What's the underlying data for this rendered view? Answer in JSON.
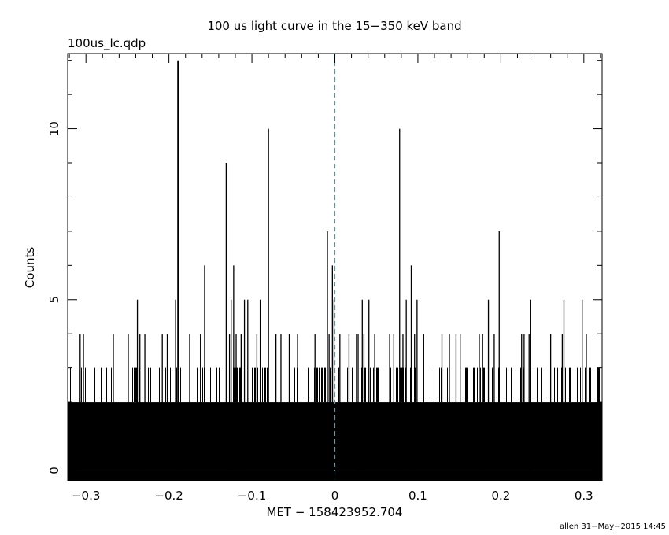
{
  "chart_data": {
    "type": "bar",
    "title": "100 us light curve in the 15−350 keV band",
    "subtitle": "100us_lc.qdp",
    "xlabel": "MET − 158423952.704",
    "ylabel": "Counts",
    "footer": "allen 31−May−2015 14:45",
    "xlim": [
      -0.322,
      0.322
    ],
    "ylim": [
      -0.3,
      12.2
    ],
    "bin_width": 0.0001,
    "x_ticks": [
      -0.3,
      -0.2,
      -0.1,
      0,
      0.1,
      0.2,
      0.3
    ],
    "x_tick_labels": [
      "−0.3",
      "−0.2",
      "−0.1",
      "0",
      "0.1",
      "0.2",
      "0.3"
    ],
    "y_ticks": [
      0,
      5,
      10
    ],
    "y_tick_labels": [
      "0",
      "5",
      "10"
    ],
    "grid": false,
    "trigger_marker": {
      "x": 0,
      "color": "#3aa0c8",
      "style": "dashed"
    },
    "bar_color": "#000000",
    "background_level": {
      "typical_max": 2,
      "upper_level": 3
    },
    "peaks": [
      {
        "x": -0.307,
        "y": 4
      },
      {
        "x": -0.303,
        "y": 4
      },
      {
        "x": -0.267,
        "y": 4
      },
      {
        "x": -0.249,
        "y": 4
      },
      {
        "x": -0.238,
        "y": 5
      },
      {
        "x": -0.235,
        "y": 4
      },
      {
        "x": -0.229,
        "y": 4
      },
      {
        "x": -0.208,
        "y": 4
      },
      {
        "x": -0.202,
        "y": 4
      },
      {
        "x": -0.192,
        "y": 5
      },
      {
        "x": -0.189,
        "y": 12
      },
      {
        "x": -0.175,
        "y": 4
      },
      {
        "x": -0.162,
        "y": 4
      },
      {
        "x": -0.157,
        "y": 6
      },
      {
        "x": -0.131,
        "y": 9
      },
      {
        "x": -0.127,
        "y": 4
      },
      {
        "x": -0.125,
        "y": 5
      },
      {
        "x": -0.122,
        "y": 6
      },
      {
        "x": -0.119,
        "y": 4
      },
      {
        "x": -0.113,
        "y": 4
      },
      {
        "x": -0.109,
        "y": 5
      },
      {
        "x": -0.105,
        "y": 5
      },
      {
        "x": -0.094,
        "y": 4
      },
      {
        "x": -0.09,
        "y": 5
      },
      {
        "x": -0.08,
        "y": 10
      },
      {
        "x": -0.071,
        "y": 4
      },
      {
        "x": -0.065,
        "y": 4
      },
      {
        "x": -0.055,
        "y": 4
      },
      {
        "x": -0.045,
        "y": 4
      },
      {
        "x": -0.024,
        "y": 4
      },
      {
        "x": -0.009,
        "y": 7
      },
      {
        "x": -0.007,
        "y": 4
      },
      {
        "x": -0.003,
        "y": 6
      },
      {
        "x": -0.001,
        "y": 5
      },
      {
        "x": 0.006,
        "y": 4
      },
      {
        "x": 0.017,
        "y": 4
      },
      {
        "x": 0.026,
        "y": 4
      },
      {
        "x": 0.028,
        "y": 4
      },
      {
        "x": 0.033,
        "y": 5
      },
      {
        "x": 0.035,
        "y": 4
      },
      {
        "x": 0.041,
        "y": 5
      },
      {
        "x": 0.048,
        "y": 4
      },
      {
        "x": 0.066,
        "y": 4
      },
      {
        "x": 0.071,
        "y": 4
      },
      {
        "x": 0.078,
        "y": 10
      },
      {
        "x": 0.082,
        "y": 4
      },
      {
        "x": 0.086,
        "y": 5
      },
      {
        "x": 0.092,
        "y": 6
      },
      {
        "x": 0.096,
        "y": 4
      },
      {
        "x": 0.099,
        "y": 5
      },
      {
        "x": 0.107,
        "y": 4
      },
      {
        "x": 0.129,
        "y": 4
      },
      {
        "x": 0.138,
        "y": 4
      },
      {
        "x": 0.146,
        "y": 4
      },
      {
        "x": 0.151,
        "y": 4
      },
      {
        "x": 0.174,
        "y": 4
      },
      {
        "x": 0.178,
        "y": 4
      },
      {
        "x": 0.185,
        "y": 5
      },
      {
        "x": 0.192,
        "y": 4
      },
      {
        "x": 0.198,
        "y": 7
      },
      {
        "x": 0.225,
        "y": 4
      },
      {
        "x": 0.228,
        "y": 4
      },
      {
        "x": 0.234,
        "y": 4
      },
      {
        "x": 0.236,
        "y": 5
      },
      {
        "x": 0.26,
        "y": 4
      },
      {
        "x": 0.274,
        "y": 4
      },
      {
        "x": 0.276,
        "y": 5
      },
      {
        "x": 0.298,
        "y": 5
      },
      {
        "x": 0.303,
        "y": 4
      }
    ]
  }
}
